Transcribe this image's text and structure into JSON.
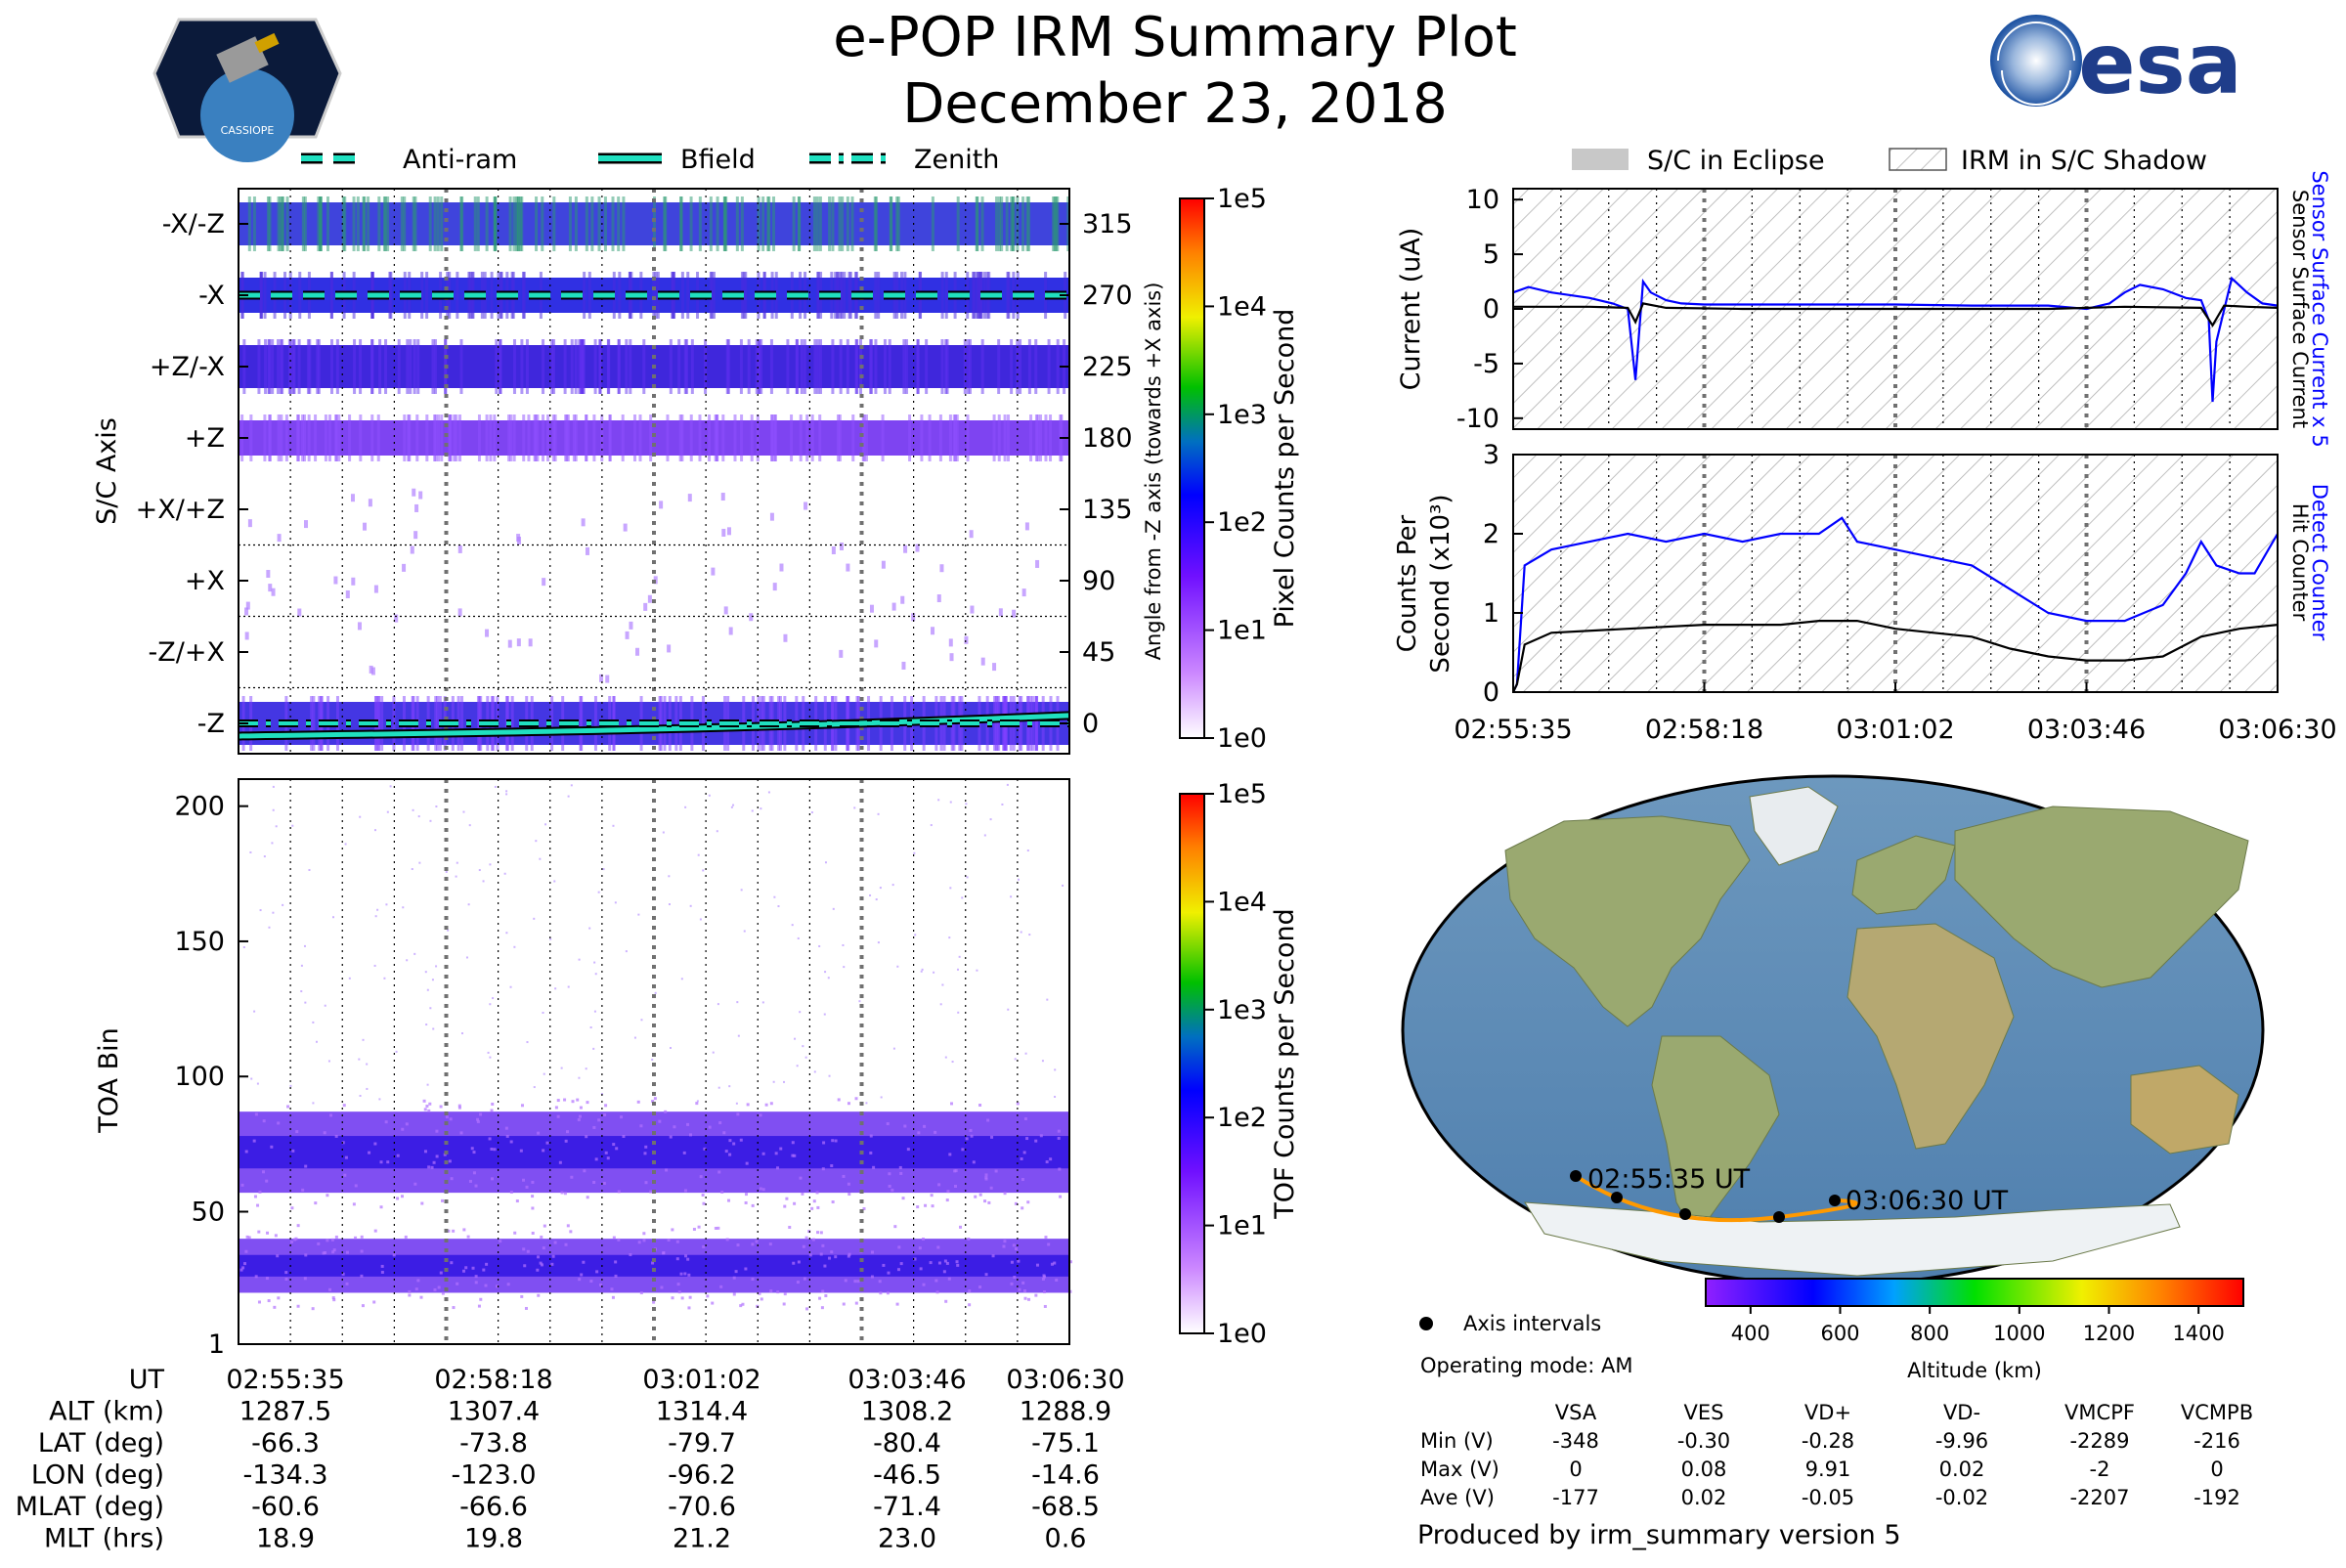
{
  "title": "e-POP IRM Summary Plot",
  "date": "December 23, 2018",
  "logos": {
    "left_text": "CASSIOPE",
    "right_text": "esa"
  },
  "legend_top_left": [
    {
      "label": "Anti-ram",
      "style": "dashed"
    },
    {
      "label": "Bfield",
      "style": "solid"
    },
    {
      "label": "Zenith",
      "style": "dashdot"
    }
  ],
  "legend_top_right": [
    {
      "label": "S/C in Eclipse",
      "style": "gray"
    },
    {
      "label": "IRM in S/C Shadow",
      "style": "hatch"
    }
  ],
  "time_ticks": [
    "02:55:35",
    "02:58:18",
    "03:01:02",
    "03:03:46",
    "03:06:30"
  ],
  "colors": {
    "blue": "#0000ff",
    "track": "#ff9900",
    "teal": "#20e0c0",
    "purple": "#8000ff"
  },
  "chart_data": [
    {
      "type": "heatmap",
      "name": "pixel_counts",
      "ylabel": "S/C Axis",
      "ylabel_right": "Angle from -Z axis (towards +X axis)",
      "axis_labels": [
        "-X/-Z",
        "-X",
        "+Z/-X",
        "+Z",
        "+X/+Z",
        "+X",
        "-Z/+X",
        "-Z"
      ],
      "angle_ticks": [
        "315",
        "270",
        "225",
        "180",
        "135",
        "90",
        "45",
        "0"
      ],
      "colorbar": {
        "label": "Pixel Counts per Second",
        "ticks": [
          "1e5",
          "1e4",
          "1e3",
          "1e2",
          "1e1",
          "1e0"
        ]
      },
      "lines": [
        {
          "name": "Anti-ram",
          "angle_deg": 270
        },
        {
          "name": "Bfield",
          "angle_start_deg": -8,
          "angle_end_deg": 5
        },
        {
          "name": "Zenith",
          "angle_deg": 0
        }
      ]
    },
    {
      "type": "heatmap",
      "name": "tof_counts",
      "ylabel": "TOA Bin",
      "yticks": [
        "200",
        "150",
        "100",
        "50",
        "1"
      ],
      "ylim": [
        1,
        210
      ],
      "bands": [
        {
          "center": 72,
          "halfwidth": 15
        },
        {
          "center": 30,
          "halfwidth": 10
        }
      ],
      "colorbar": {
        "label": "TOF Counts per Second",
        "ticks": [
          "1e5",
          "1e4",
          "1e3",
          "1e2",
          "1e1",
          "1e0"
        ]
      }
    },
    {
      "type": "line",
      "name": "sensor_current",
      "ylabel": "Current (uA)",
      "ylim": [
        -11,
        11
      ],
      "yticks": [
        "10",
        "5",
        "0",
        "-5",
        "-10"
      ],
      "right_label_1": "Sensor Surface Current x 5",
      "right_label_2": "Sensor Surface Current",
      "series": [
        {
          "name": "Sensor Surface Current x 5",
          "color": "#0000ff",
          "x": [
            0,
            0.02,
            0.05,
            0.1,
            0.13,
            0.15,
            0.16,
            0.17,
            0.18,
            0.2,
            0.22,
            0.25,
            0.3,
            0.4,
            0.5,
            0.6,
            0.7,
            0.75,
            0.78,
            0.8,
            0.82,
            0.85,
            0.88,
            0.9,
            0.91,
            0.915,
            0.92,
            0.94,
            0.96,
            0.98,
            1.0
          ],
          "y": [
            1.5,
            2.0,
            1.5,
            1.0,
            0.5,
            0,
            -6.5,
            2.5,
            1.5,
            0.8,
            0.5,
            0.4,
            0.4,
            0.4,
            0.4,
            0.3,
            0.3,
            0.0,
            0.5,
            1.5,
            2.2,
            1.8,
            1.0,
            0.8,
            -1.0,
            -8.5,
            -3.0,
            2.8,
            1.5,
            0.5,
            0.3
          ]
        },
        {
          "name": "Sensor Surface Current",
          "color": "#000000",
          "x": [
            0,
            0.1,
            0.15,
            0.16,
            0.17,
            0.2,
            0.3,
            0.5,
            0.7,
            0.8,
            0.9,
            0.915,
            0.93,
            0.96,
            1.0
          ],
          "y": [
            0.2,
            0.2,
            0.1,
            -1.2,
            0.5,
            0.1,
            0.0,
            0.0,
            0.0,
            0.2,
            0.1,
            -1.5,
            0.3,
            0.2,
            0.1
          ]
        }
      ]
    },
    {
      "type": "line",
      "name": "detect_counter",
      "ylabel": "Counts Per Second (x10³)",
      "ylim": [
        0,
        3
      ],
      "yticks": [
        "3",
        "2",
        "1",
        "0"
      ],
      "right_label_1": "Detect Counter",
      "right_label_2": "Hit Counter",
      "series": [
        {
          "name": "Detect Counter",
          "color": "#0000ff",
          "x": [
            0,
            0.005,
            0.015,
            0.05,
            0.1,
            0.15,
            0.2,
            0.25,
            0.3,
            0.35,
            0.4,
            0.43,
            0.45,
            0.5,
            0.55,
            0.6,
            0.65,
            0.7,
            0.75,
            0.8,
            0.85,
            0.88,
            0.9,
            0.92,
            0.95,
            0.97,
            1.0
          ],
          "y": [
            0,
            0.1,
            1.6,
            1.8,
            1.9,
            2.0,
            1.9,
            2.0,
            1.9,
            2.0,
            2.0,
            2.2,
            1.9,
            1.8,
            1.7,
            1.6,
            1.3,
            1.0,
            0.9,
            0.9,
            1.1,
            1.5,
            1.9,
            1.6,
            1.5,
            1.5,
            2.0
          ]
        },
        {
          "name": "Hit Counter",
          "color": "#000000",
          "x": [
            0,
            0.005,
            0.015,
            0.05,
            0.15,
            0.25,
            0.35,
            0.4,
            0.45,
            0.5,
            0.55,
            0.6,
            0.65,
            0.7,
            0.75,
            0.8,
            0.85,
            0.9,
            0.95,
            1.0
          ],
          "y": [
            0,
            0.1,
            0.6,
            0.75,
            0.8,
            0.85,
            0.85,
            0.9,
            0.9,
            0.8,
            0.75,
            0.7,
            0.55,
            0.45,
            0.4,
            0.4,
            0.45,
            0.7,
            0.8,
            0.85
          ]
        }
      ]
    }
  ],
  "map": {
    "start_label": "02:55:35 UT",
    "end_label": "03:06:30 UT",
    "axis_intervals_label": "Axis intervals",
    "operating_mode": "Operating mode: AM",
    "altitude_label": "Altitude (km)",
    "altitude_ticks": [
      "400",
      "600",
      "800",
      "1000",
      "1200",
      "1400"
    ]
  },
  "ephemeris": [
    {
      "label": "UT",
      "values": [
        "02:55:35",
        "02:58:18",
        "03:01:02",
        "03:03:46",
        "03:06:30"
      ]
    },
    {
      "label": "ALT (km)",
      "values": [
        "1287.5",
        "1307.4",
        "1314.4",
        "1308.2",
        "1288.9"
      ]
    },
    {
      "label": "LAT (deg)",
      "values": [
        "-66.3",
        "-73.8",
        "-79.7",
        "-80.4",
        "-75.1"
      ]
    },
    {
      "label": "LON (deg)",
      "values": [
        "-134.3",
        "-123.0",
        "-96.2",
        "-46.5",
        "-14.6"
      ]
    },
    {
      "label": "MLAT (deg)",
      "values": [
        "-60.6",
        "-66.6",
        "-70.6",
        "-71.4",
        "-68.5"
      ]
    },
    {
      "label": "MLT (hrs)",
      "values": [
        "18.9",
        "19.8",
        "21.2",
        "23.0",
        "0.6"
      ]
    }
  ],
  "voltage_table": {
    "headers": [
      "",
      "VSA",
      "VES",
      "VD+",
      "VD-",
      "VMCPF",
      "VCMPB"
    ],
    "rows": [
      [
        "Min (V)",
        "-348",
        "-0.30",
        "-0.28",
        "-9.96",
        "-2289",
        "-216"
      ],
      [
        "Max (V)",
        "0",
        "0.08",
        "9.91",
        "0.02",
        "-2",
        "0"
      ],
      [
        "Ave (V)",
        "-177",
        "0.02",
        "-0.05",
        "-0.02",
        "-2207",
        "-192"
      ]
    ]
  },
  "footer": "Produced by irm_summary version 5"
}
